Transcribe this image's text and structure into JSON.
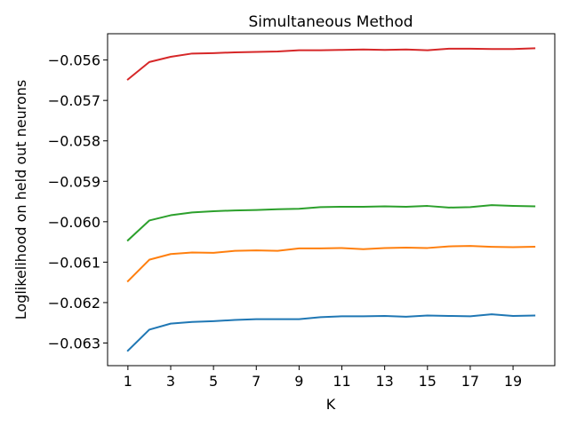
{
  "chart_data": {
    "type": "line",
    "title": "Simultaneous Method",
    "xlabel": "K",
    "ylabel": "Loglikelihood on held out neurons",
    "x": [
      1,
      2,
      3,
      4,
      5,
      6,
      7,
      8,
      9,
      10,
      11,
      12,
      13,
      14,
      15,
      16,
      17,
      18,
      19,
      20
    ],
    "xticks": [
      "1",
      "3",
      "5",
      "7",
      "9",
      "11",
      "13",
      "15",
      "17",
      "19"
    ],
    "yticks": [
      "−0.056",
      "−0.057",
      "−0.058",
      "−0.059",
      "−0.060",
      "−0.061",
      "−0.062",
      "−0.063"
    ],
    "xlim": [
      0.05,
      20.95
    ],
    "ylim": [
      -0.06356,
      -0.05535
    ],
    "grid": false,
    "legend": "none",
    "series": [
      {
        "color": "#d62728",
        "values": [
          -0.05648,
          -0.05605,
          -0.05592,
          -0.05584,
          -0.05583,
          -0.05581,
          -0.0558,
          -0.05579,
          -0.05576,
          -0.05576,
          -0.05575,
          -0.05574,
          -0.05575,
          -0.05574,
          -0.05576,
          -0.05572,
          -0.05572,
          -0.05573,
          -0.05573,
          -0.05571
        ]
      },
      {
        "color": "#2ca02c",
        "values": [
          -0.06046,
          -0.05997,
          -0.05984,
          -0.05977,
          -0.05974,
          -0.05972,
          -0.05971,
          -0.05969,
          -0.05968,
          -0.05964,
          -0.05963,
          -0.05963,
          -0.05962,
          -0.05963,
          -0.05961,
          -0.05965,
          -0.05964,
          -0.05959,
          -0.05961,
          -0.05962
        ]
      },
      {
        "color": "#ff7f0e",
        "values": [
          -0.06147,
          -0.06094,
          -0.0608,
          -0.06076,
          -0.06077,
          -0.06072,
          -0.06071,
          -0.06072,
          -0.06066,
          -0.06066,
          -0.06065,
          -0.06068,
          -0.06065,
          -0.06064,
          -0.06065,
          -0.06061,
          -0.0606,
          -0.06062,
          -0.06063,
          -0.06062
        ]
      },
      {
        "color": "#1f77b4",
        "values": [
          -0.06319,
          -0.06267,
          -0.06252,
          -0.06248,
          -0.06246,
          -0.06243,
          -0.06241,
          -0.06241,
          -0.06241,
          -0.06236,
          -0.06234,
          -0.06234,
          -0.06233,
          -0.06235,
          -0.06232,
          -0.06233,
          -0.06234,
          -0.06229,
          -0.06233,
          -0.06232
        ]
      }
    ]
  }
}
